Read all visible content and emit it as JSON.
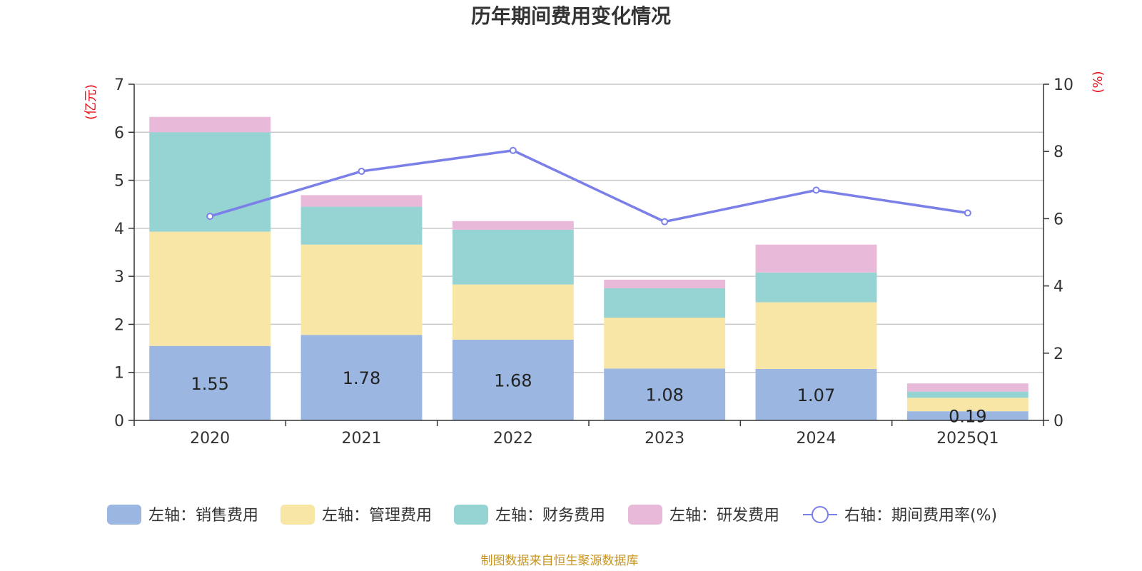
{
  "chart_data": {
    "type": "bar",
    "title": "历年期间费用变化情况",
    "categories": [
      "2020",
      "2021",
      "2022",
      "2023",
      "2024",
      "2025Q1"
    ],
    "left_axis": {
      "unit": "(亿元)",
      "ylim": [
        0,
        7
      ],
      "ticks": [
        "0",
        "1",
        "2",
        "3",
        "4",
        "5",
        "6",
        "7"
      ]
    },
    "right_axis": {
      "unit": "(%)",
      "ylim": [
        0,
        10
      ],
      "ticks": [
        "0",
        "2",
        "4",
        "6",
        "8",
        "10"
      ]
    },
    "series": [
      {
        "name": "左轴：销售费用",
        "axis": "left",
        "color": "#9bb6e0",
        "values": [
          1.55,
          1.78,
          1.68,
          1.08,
          1.07,
          0.19
        ],
        "labels": [
          "1.55",
          "1.78",
          "1.68",
          "1.08",
          "1.07",
          "0.19"
        ]
      },
      {
        "name": "左轴：管理费用",
        "axis": "left",
        "color": "#f7e6a6",
        "values": [
          2.38,
          1.88,
          1.15,
          1.06,
          1.39,
          0.28
        ]
      },
      {
        "name": "左轴：财务费用",
        "axis": "left",
        "color": "#96d4d4",
        "values": [
          2.07,
          0.79,
          1.14,
          0.61,
          0.62,
          0.13
        ]
      },
      {
        "name": "左轴：研发费用",
        "axis": "left",
        "color": "#e8b9d9",
        "values": [
          0.32,
          0.24,
          0.18,
          0.18,
          0.58,
          0.17
        ]
      },
      {
        "name": "右轴：期间费用率(%)",
        "axis": "right",
        "type": "line",
        "color": "#7b7fe8",
        "values": [
          6.07,
          7.41,
          8.03,
          5.91,
          6.85,
          6.17
        ]
      }
    ],
    "grid": true,
    "legend_position": "bottom"
  },
  "source_note": "制图数据来自恒生聚源数据库"
}
